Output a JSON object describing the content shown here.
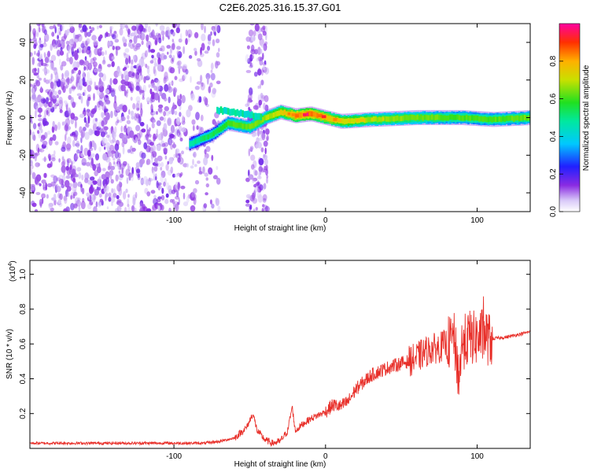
{
  "chart_data": [
    {
      "type": "heatmap",
      "title": "C2E6.2025.316.15.37.G01",
      "xlabel": "Height of straight line (km)",
      "ylabel": "Frequency (Hz)",
      "xlim": [
        -195,
        135
      ],
      "ylim": [
        -50,
        50
      ],
      "x_ticks": [
        -100,
        0,
        100
      ],
      "x_tick_labels": [
        "-100",
        "0",
        "100"
      ],
      "y_ticks": [
        -40,
        -20,
        0,
        20,
        40
      ],
      "y_tick_labels": [
        "-40",
        "-20",
        "0",
        "20",
        "40"
      ],
      "colorbar": {
        "label": "Normalized spectral amplitude",
        "range": [
          0,
          1
        ],
        "ticks": [
          0.0,
          0.2,
          0.4,
          0.6,
          0.8
        ],
        "tick_labels": [
          "0.0",
          "0.2",
          "0.4",
          "0.6",
          "0.8"
        ]
      },
      "ridge": {
        "description_points_x": [
          -90,
          -75,
          -65,
          -50,
          -40,
          -30,
          -20,
          -10,
          0,
          10,
          30,
          60,
          90,
          110,
          135
        ],
        "frequency": [
          -14,
          -9,
          -3,
          -5,
          0,
          3,
          1,
          2,
          0,
          -2,
          -1,
          0,
          0,
          -1,
          0
        ],
        "amplitude": [
          0.3,
          0.4,
          0.5,
          0.55,
          0.6,
          0.7,
          0.85,
          0.9,
          0.8,
          0.7,
          0.6,
          0.55,
          0.5,
          0.5,
          0.55
        ]
      },
      "noise_regions_x": [
        [
          -195,
          -70
        ],
        [
          -52,
          -38
        ]
      ]
    },
    {
      "type": "line",
      "xlabel": "Height of straight line (km)",
      "ylabel": "SNR (10 * v/v)",
      "scale_label": "(x10",
      "scale_exponent": "4",
      "scale_suffix": ")",
      "xlim": [
        -195,
        135
      ],
      "ylim": [
        0,
        1.08
      ],
      "x_ticks": [
        -100,
        0,
        100
      ],
      "x_tick_labels": [
        "-100",
        "0",
        "100"
      ],
      "y_ticks": [
        0.2,
        0.4,
        0.6,
        0.8,
        1.0
      ],
      "y_tick_labels": [
        "0.2",
        "0.4",
        "0.6",
        "0.8",
        "1.0"
      ],
      "series": [
        {
          "name": "SNR",
          "color": "#e8302a",
          "x": [
            -195,
            -150,
            -110,
            -80,
            -70,
            -60,
            -52,
            -48,
            -45,
            -40,
            -35,
            -30,
            -25,
            -22,
            -20,
            -15,
            -10,
            -5,
            0,
            5,
            10,
            15,
            20,
            25,
            30,
            40,
            50,
            55,
            60,
            65,
            70,
            75,
            80,
            85,
            88,
            90,
            95,
            100,
            105,
            108,
            110,
            120,
            135
          ],
          "y": [
            0.03,
            0.03,
            0.03,
            0.03,
            0.04,
            0.06,
            0.12,
            0.2,
            0.1,
            0.05,
            0.03,
            0.04,
            0.1,
            0.24,
            0.1,
            0.14,
            0.17,
            0.19,
            0.21,
            0.25,
            0.24,
            0.27,
            0.34,
            0.38,
            0.42,
            0.46,
            0.49,
            0.5,
            0.52,
            0.55,
            0.57,
            0.58,
            0.6,
            0.62,
            0.4,
            0.6,
            0.64,
            0.63,
            0.66,
            0.62,
            0.63,
            0.64,
            0.67
          ]
        }
      ]
    }
  ]
}
